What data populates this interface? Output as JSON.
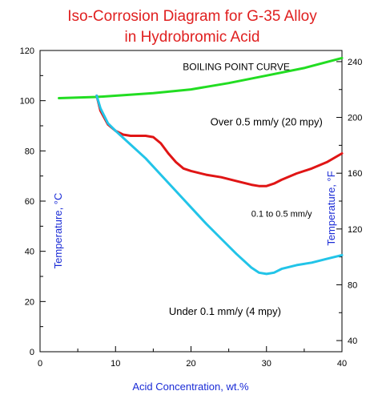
{
  "chart_data": {
    "type": "line",
    "title": "Iso-Corrosion Diagram for G-35 Alloy",
    "subtitle": "in Hydrobromic Acid",
    "xlabel": "Acid Concentration, wt.%",
    "ylabel_left": "Temperature, °C",
    "ylabel_right": "Temperature, °F",
    "xlim": [
      0,
      40
    ],
    "ylim": [
      0,
      120
    ],
    "ylim_right": [
      32,
      248
    ],
    "x_ticks": [
      "0",
      "10",
      "20",
      "30",
      "40"
    ],
    "y_ticks": [
      "0",
      "20",
      "40",
      "60",
      "80",
      "100",
      "120"
    ],
    "y_right_ticks": [
      "40",
      "80",
      "120",
      "160",
      "200",
      "240"
    ],
    "grid": false,
    "series": [
      {
        "color": "#22dd22",
        "x": [
          2.5,
          7.5,
          15,
          20,
          25,
          30,
          35,
          40
        ],
        "y": [
          101,
          101.5,
          103,
          104.5,
          107,
          110,
          113,
          117
        ]
      },
      {
        "color": "#e01515",
        "x": [
          7.5,
          8,
          9,
          10,
          11,
          12,
          13,
          14,
          15,
          16,
          17,
          18,
          19,
          20,
          22,
          24,
          26,
          28,
          29,
          30,
          31,
          32,
          34,
          36,
          38,
          40
        ],
        "y": [
          102,
          96,
          90.5,
          88,
          86.5,
          86,
          86,
          86,
          85.5,
          83,
          79,
          75.5,
          73,
          72,
          70.5,
          69.5,
          68,
          66.5,
          66,
          66,
          67,
          68.5,
          71,
          73,
          75.5,
          79
        ]
      },
      {
        "color": "#22c4e8",
        "x": [
          7.5,
          8,
          9,
          10,
          12,
          14,
          16,
          18,
          20,
          22,
          24,
          26,
          28,
          29,
          30,
          31,
          32,
          34,
          36,
          38,
          40
        ],
        "y": [
          102,
          97,
          91,
          88,
          82.5,
          77,
          70.5,
          64,
          57.5,
          51,
          45,
          39,
          33.5,
          31.5,
          31,
          31.5,
          33,
          34.5,
          35.5,
          37,
          38.5
        ]
      }
    ],
    "annotations": [
      {
        "text": "BOILING POINT CURVE",
        "x": 26,
        "y": 113.5,
        "color": "#22dd22"
      },
      {
        "text": "Over 0.5 mm/y (20 mpy)",
        "x": 30,
        "y": 91.5,
        "color": "#000000"
      },
      {
        "text": "0.1 to 0.5 mm/y",
        "x": 32,
        "y": 55,
        "color": "#000000"
      },
      {
        "text": "Under 0.1 mm/y (4 mpy)",
        "x": 24.5,
        "y": 16,
        "color": "#000000"
      }
    ]
  }
}
